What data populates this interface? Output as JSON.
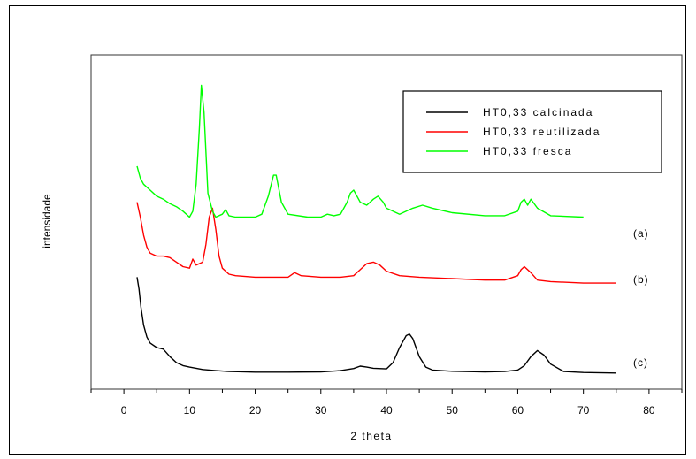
{
  "chart_data": {
    "type": "line",
    "title": "",
    "xlabel": "2 theta",
    "ylabel": "intensidade",
    "xlim": [
      -5,
      85
    ],
    "ylim": [
      0,
      100
    ],
    "xticks": [
      0,
      10,
      20,
      30,
      40,
      50,
      60,
      70,
      80
    ],
    "grid": false,
    "legend_position": "top-right",
    "series": [
      {
        "name": "HT0,33 calcinada",
        "color": "#000000",
        "label": "(c)",
        "x": [
          2,
          2.3,
          2.6,
          3,
          3.5,
          4,
          5,
          6,
          7,
          8,
          9,
          10,
          12,
          14,
          16,
          20,
          25,
          30,
          33,
          35,
          36,
          37,
          38,
          40,
          41,
          42,
          43,
          43.5,
          44,
          45,
          46,
          47,
          50,
          55,
          58,
          60,
          61,
          62,
          63,
          64,
          65,
          67,
          70,
          75
        ],
        "y": [
          35,
          31,
          25,
          19,
          15,
          13,
          11.5,
          11,
          8.5,
          6.5,
          5.5,
          5,
          4.2,
          3.8,
          3.5,
          3.3,
          3.3,
          3.4,
          3.8,
          4.5,
          5.3,
          5,
          4.6,
          4.4,
          6.5,
          11.5,
          15.5,
          16,
          14.5,
          8.5,
          5,
          4,
          3.6,
          3.4,
          3.5,
          4,
          5.5,
          8.5,
          10.5,
          9,
          6,
          3.5,
          3.2,
          3
        ]
      },
      {
        "name": "HT0,33 reutilizada",
        "color": "#ff0000",
        "label": "(b)",
        "x": [
          2,
          2.5,
          3,
          3.5,
          4,
          5,
          6,
          7,
          8,
          9,
          10,
          10.5,
          11,
          12,
          12.5,
          13,
          13.5,
          14,
          14.5,
          15,
          16,
          17,
          20,
          25,
          26,
          27,
          30,
          33,
          35,
          36,
          37,
          38,
          39,
          40,
          42,
          45,
          50,
          55,
          58,
          60,
          60.5,
          61,
          62,
          63,
          65,
          70,
          75
        ],
        "y": [
          60,
          55,
          49,
          45,
          43,
          42,
          42,
          41.5,
          40,
          38.5,
          38,
          41,
          39,
          40,
          46,
          55,
          58,
          51,
          42,
          38,
          36,
          35.5,
          35,
          35,
          36.5,
          35.5,
          35,
          35,
          35.5,
          37.5,
          39.5,
          40,
          39,
          37,
          35.5,
          35,
          34.5,
          34,
          34,
          35.5,
          37.5,
          38.5,
          36.5,
          34,
          33.5,
          33,
          33
        ]
      },
      {
        "name": "HT0,33 fresca",
        "color": "#00ff00",
        "label": "(a)",
        "x": [
          2,
          2.5,
          3,
          4,
          5,
          6,
          7,
          8,
          9,
          10,
          10.5,
          11,
          11.5,
          11.8,
          12.2,
          12.8,
          13.5,
          14,
          15,
          15.5,
          16,
          17,
          20,
          21,
          22,
          22.8,
          23.2,
          24,
          25,
          28,
          30,
          31,
          32,
          33,
          34,
          34.5,
          35,
          36,
          37,
          38,
          38.7,
          39.5,
          40,
          42,
          44,
          45.5,
          47,
          50,
          55,
          58,
          60,
          60.5,
          61,
          61.5,
          62,
          63,
          65,
          70
        ],
        "y": [
          72,
          68,
          66,
          64,
          62,
          61,
          59.5,
          58.5,
          57,
          55,
          57,
          66,
          85,
          99,
          90,
          63,
          57,
          55,
          56,
          57.5,
          55.5,
          55,
          55,
          56,
          62,
          69,
          69,
          60,
          56,
          55,
          55,
          56,
          55.5,
          56,
          60,
          63,
          64,
          60,
          59,
          61,
          62,
          60,
          58,
          56,
          58,
          59,
          58,
          56.5,
          55.5,
          55.5,
          57,
          60,
          61,
          59,
          61,
          58,
          55.5,
          55
        ]
      }
    ]
  }
}
